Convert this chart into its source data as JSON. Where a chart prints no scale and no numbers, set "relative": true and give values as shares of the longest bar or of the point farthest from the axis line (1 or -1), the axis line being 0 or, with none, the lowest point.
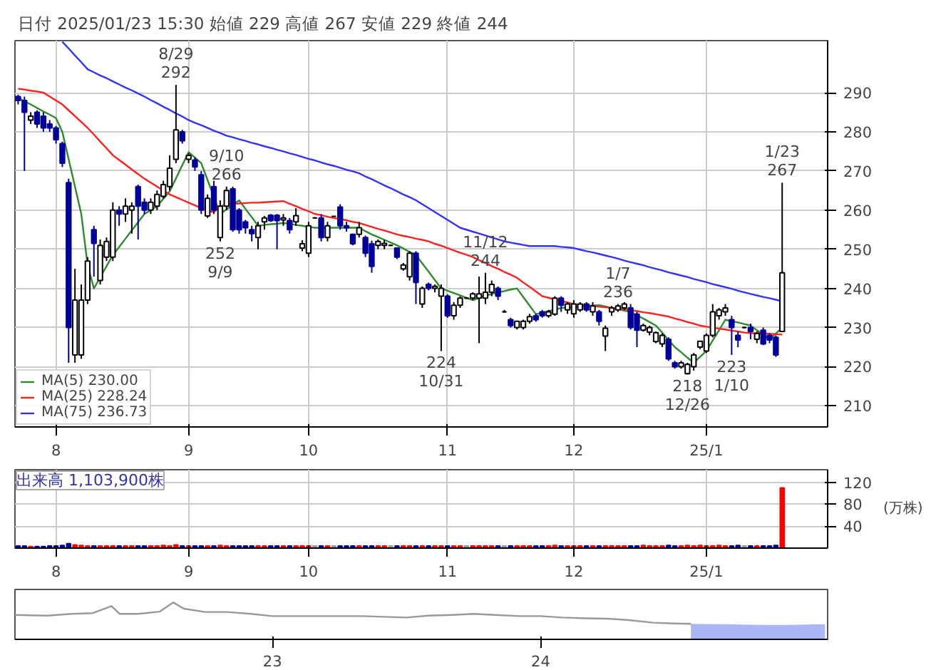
{
  "chart_data": [
    {
      "type": "candlestick",
      "title": "日付 2025/01/23 15:30 始値 229 高値 267 安値 229 終値 244",
      "categories": [
        null,
        null,
        null,
        null,
        null,
        null,
        "8",
        null,
        null,
        null,
        null,
        null,
        null,
        null,
        null,
        null,
        null,
        null,
        null,
        null,
        null,
        null,
        null,
        null,
        null,
        null,
        null,
        "9",
        null,
        null,
        null,
        null,
        null,
        null,
        null,
        null,
        null,
        null,
        null,
        null,
        null,
        null,
        null,
        null,
        null,
        null,
        "10",
        null,
        null,
        null,
        null,
        null,
        null,
        null,
        null,
        null,
        null,
        null,
        null,
        null,
        null,
        null,
        null,
        null,
        null,
        null,
        null,
        null,
        "11",
        null,
        null,
        null,
        null,
        null,
        null,
        null,
        null,
        null,
        null,
        null,
        null,
        null,
        null,
        null,
        null,
        null,
        null,
        null,
        "12",
        null,
        null,
        null,
        null,
        null,
        null,
        null,
        null,
        null,
        null,
        null,
        null,
        null,
        null,
        null,
        null,
        null,
        null,
        null,
        null,
        "25/1",
        null,
        null,
        null,
        null,
        null,
        null,
        null,
        null,
        null,
        null,
        null,
        null
      ],
      "ohlc": [
        [
          289,
          289.5,
          287,
          288
        ],
        [
          288,
          289,
          270,
          285
        ],
        [
          283,
          285,
          282,
          284
        ],
        [
          285,
          285.5,
          281,
          282
        ],
        [
          284,
          285,
          280,
          281
        ],
        [
          282,
          283,
          280,
          281
        ],
        [
          281,
          281.5,
          277,
          278
        ],
        [
          277,
          277.5,
          271,
          272
        ],
        [
          267,
          268,
          221,
          230
        ],
        [
          223,
          245,
          221,
          237
        ],
        [
          223,
          241,
          222,
          237
        ],
        [
          237,
          248,
          236,
          247
        ],
        [
          255,
          256,
          243,
          251.5
        ],
        [
          242,
          252.5,
          241,
          251
        ],
        [
          248,
          253,
          247,
          252
        ],
        [
          248,
          262,
          247,
          260
        ],
        [
          260,
          261,
          256,
          259
        ],
        [
          259,
          263,
          257,
          261
        ],
        [
          260,
          262,
          254,
          261
        ],
        [
          266,
          266.5,
          252.5,
          261
        ],
        [
          262,
          263,
          259,
          260
        ],
        [
          260,
          263,
          259,
          262
        ],
        [
          261,
          265,
          260,
          264
        ],
        [
          263.5,
          267.5,
          263,
          266.5
        ],
        [
          266,
          274,
          265,
          270.7
        ],
        [
          273,
          292,
          272,
          280.5
        ],
        [
          280,
          280.5,
          277,
          277.7
        ],
        [
          273,
          274.5,
          272,
          274
        ],
        [
          272.8,
          273.5,
          270,
          271
        ],
        [
          269,
          270,
          259,
          260
        ],
        [
          258.5,
          264,
          258,
          263
        ],
        [
          266,
          267.5,
          259,
          260
        ],
        [
          253,
          262.5,
          252,
          261
        ],
        [
          261,
          266,
          260,
          265
        ],
        [
          265.4,
          266,
          254.5,
          255
        ],
        [
          260,
          260.5,
          254,
          255
        ],
        [
          257,
          257.5,
          254,
          255.5
        ],
        [
          255,
          256,
          252,
          254
        ],
        [
          253,
          257,
          250,
          256
        ],
        [
          257,
          258.5,
          255,
          258
        ],
        [
          258.7,
          259,
          257,
          257.3
        ],
        [
          258.7,
          259,
          250,
          257.3
        ],
        [
          257.5,
          259,
          256,
          258
        ],
        [
          257.3,
          258,
          254,
          255
        ],
        [
          257,
          260.5,
          256,
          258.6
        ],
        [
          250.3,
          252.3,
          249.5,
          251.4
        ],
        [
          249,
          257,
          248,
          256
        ],
        [
          258,
          258.2,
          257.8,
          258
        ],
        [
          258,
          259,
          252,
          253
        ],
        [
          253,
          257,
          252,
          256
        ],
        [
          258.4,
          258.5,
          258.3,
          258.4
        ],
        [
          260.8,
          261.5,
          255,
          256
        ],
        [
          256,
          257,
          254.5,
          255.5
        ],
        [
          253.8,
          254,
          251,
          251.4
        ],
        [
          253.8,
          257,
          253,
          255.5
        ],
        [
          253,
          253.5,
          248,
          249
        ],
        [
          251.4,
          252.2,
          244,
          245.6
        ],
        [
          251,
          252.5,
          250,
          252
        ],
        [
          251,
          252.4,
          250,
          251.5
        ],
        [
          251,
          251.2,
          250.8,
          251
        ],
        [
          250.3,
          250.5,
          247.5,
          248
        ],
        [
          245,
          246.5,
          244.5,
          246
        ],
        [
          243,
          249.5,
          242,
          249
        ],
        [
          249,
          249.5,
          236,
          241.5
        ],
        [
          236,
          240.5,
          235,
          240
        ],
        [
          241,
          241.5,
          239.5,
          240
        ],
        [
          240,
          241,
          239,
          240.5
        ],
        [
          238,
          241,
          224,
          240
        ],
        [
          238,
          238.5,
          232.5,
          233
        ],
        [
          233,
          236.5,
          232,
          235.7
        ],
        [
          235.7,
          238,
          235,
          237.5
        ],
        [
          237.5,
          237.7,
          237.3,
          237.5
        ],
        [
          237.5,
          239,
          237,
          238.6
        ],
        [
          237.5,
          243,
          226,
          238.6
        ],
        [
          237.5,
          244,
          236,
          239
        ],
        [
          239,
          242,
          238,
          241
        ],
        [
          240,
          240.5,
          237,
          238
        ],
        [
          234,
          234.5,
          233.8,
          234
        ],
        [
          232,
          232.5,
          230,
          230.5
        ],
        [
          230,
          231.6,
          229.5,
          231.6
        ],
        [
          230,
          232,
          229.5,
          231.6
        ],
        [
          231.6,
          233.5,
          231,
          232.8
        ],
        [
          233,
          233.5,
          231.5,
          232
        ],
        [
          234,
          234.5,
          232.5,
          233
        ],
        [
          233,
          234.5,
          232.5,
          234
        ],
        [
          233.4,
          238,
          233,
          237.5
        ],
        [
          237.5,
          238,
          234,
          235.7
        ],
        [
          234.5,
          236.5,
          233.5,
          236
        ],
        [
          233.5,
          237,
          232.5,
          236
        ],
        [
          234.5,
          236.5,
          234,
          236
        ],
        [
          236,
          236.5,
          234,
          234.5
        ],
        [
          234,
          236.5,
          233,
          235.5
        ],
        [
          234,
          234.5,
          230.5,
          231.6
        ],
        [
          227.8,
          230.5,
          224,
          229.8
        ],
        [
          234,
          235.5,
          233,
          235
        ],
        [
          234.5,
          236,
          234,
          235.5
        ],
        [
          235,
          236.5,
          234.5,
          236
        ],
        [
          235,
          236,
          229.5,
          230
        ],
        [
          233.4,
          234,
          225,
          229.3
        ],
        [
          229.3,
          231,
          229,
          230.5
        ],
        [
          228.8,
          230.5,
          228,
          230
        ],
        [
          226.4,
          229,
          226,
          228.7
        ],
        [
          225.8,
          228.5,
          225,
          228
        ],
        [
          227,
          227.5,
          221.5,
          222
        ],
        [
          221,
          221.5,
          219.5,
          220
        ],
        [
          220,
          221.5,
          219.5,
          221
        ],
        [
          218.2,
          221,
          218,
          220.6
        ],
        [
          220,
          223.5,
          219,
          223
        ],
        [
          225,
          226.5,
          224.5,
          226.5
        ],
        [
          224,
          228.5,
          223.5,
          228
        ],
        [
          228,
          236,
          227.5,
          234
        ],
        [
          233,
          235,
          232,
          234.5
        ],
        [
          234,
          236,
          233,
          235
        ],
        [
          232,
          233,
          223,
          230
        ],
        [
          228,
          229,
          225,
          226.8
        ],
        [
          230,
          230.2,
          229.8,
          230
        ],
        [
          230,
          231,
          227,
          229
        ],
        [
          227,
          229,
          226,
          228.5
        ],
        [
          229.3,
          230,
          225.5,
          225.8
        ],
        [
          228,
          228.5,
          226,
          226.8
        ],
        [
          227.5,
          228,
          222.5,
          223
        ],
        [
          229,
          267,
          229,
          244
        ]
      ],
      "series": [
        {
          "type": "line",
          "name": "MA(5) 230.00",
          "color": "#2e8b2e",
          "values": [
            288.7,
            287.8,
            287,
            286.1,
            285.2,
            284.4,
            283.5,
            280,
            273,
            266,
            259,
            246,
            240,
            242.8,
            245.7,
            248.5,
            250.6,
            252.7,
            254.8,
            256.9,
            259,
            260,
            261,
            262.9,
            264.8,
            268.1,
            271.5,
            274.8,
            273.4,
            272,
            267.7,
            263.3,
            259,
            260.2,
            261.3,
            262.5,
            260.3,
            258.2,
            256,
            256.2,
            256.4,
            256.5,
            256.7,
            256.5,
            256.2,
            256,
            255.7,
            255.5,
            255.5,
            255.5,
            255.5,
            255.5,
            255.5,
            255.5,
            255.5,
            254.6,
            253.8,
            253.1,
            252.4,
            251.7,
            251,
            250.2,
            249.3,
            248.5,
            246.4,
            244.3,
            242.1,
            240,
            239.4,
            238.8,
            238.2,
            237.6,
            237,
            237.5,
            238.1,
            238.6,
            239,
            239.3,
            239.7,
            240,
            237.8,
            235.6,
            233.4,
            233.8,
            234.2,
            234.6,
            235,
            235.1,
            235.2,
            235.4,
            235.5,
            235.6,
            235.7,
            235.4,
            235,
            234.7,
            234.3,
            234,
            233.1,
            232.3,
            231.4,
            230.5,
            228.7,
            226.8,
            225,
            223.7,
            222.3,
            221,
            222.5,
            224,
            226.7,
            229.3,
            232,
            231.6,
            231.3,
            230.9,
            230.5,
            229.3,
            228.2,
            227,
            228.5,
            230
          ]
        },
        {
          "type": "line",
          "name": "MA(25) 228.24",
          "color": "#ff2020",
          "values": [
            291,
            290.8,
            290.5,
            290.3,
            290,
            289,
            288,
            287,
            285.5,
            284,
            282.5,
            281,
            279.3,
            277.5,
            275.8,
            274,
            272.8,
            271.6,
            270.4,
            269.2,
            268,
            267,
            266,
            265,
            264,
            263.3,
            262.6,
            261.9,
            261.2,
            260.5,
            259.8,
            259.5,
            260.9,
            261.5,
            261.6,
            261.7,
            261.8,
            261.9,
            261.9,
            262,
            262.1,
            262.2,
            262.3,
            261.6,
            261,
            260.3,
            259.7,
            259,
            258.7,
            258.3,
            258,
            257.7,
            257.4,
            257,
            256.7,
            256.2,
            255.7,
            255.2,
            254.8,
            254.3,
            253.8,
            253.4,
            253.1,
            252.7,
            252.4,
            252,
            251.4,
            250.9,
            250.3,
            249.7,
            249.1,
            248.6,
            248,
            247.2,
            246.5,
            245.7,
            245,
            244.2,
            243.5,
            242.7,
            241.5,
            240.4,
            239.2,
            238,
            237.6,
            237.2,
            236.8,
            236.4,
            236,
            235.8,
            235.7,
            235.5,
            235.3,
            235.2,
            235,
            234.8,
            234.7,
            234.5,
            234.2,
            233.9,
            233.7,
            233.4,
            233.1,
            232.8,
            232.3,
            231.9,
            231.4,
            231,
            230.5,
            230.2,
            230,
            229.7,
            229.5,
            229.2,
            229,
            228.7,
            228.6,
            228.5,
            228.5,
            228.4,
            228.3,
            228.2
          ]
        },
        {
          "type": "line",
          "name": "MA(75) 236.73",
          "color": "#3333ff",
          "values": [
            null,
            null,
            null,
            null,
            null,
            null,
            null,
            303,
            301.3,
            299.5,
            297.8,
            296,
            295.2,
            294.4,
            293.7,
            292.9,
            292.1,
            291.3,
            290.6,
            289.8,
            289,
            288.1,
            287.3,
            286.4,
            285.6,
            284.7,
            283.9,
            283,
            282.3,
            281.7,
            281,
            280.3,
            279.7,
            279,
            278.6,
            278.1,
            277.7,
            277.2,
            276.8,
            276.3,
            275.9,
            275.4,
            275,
            274.5,
            274.1,
            273.6,
            273.1,
            272.7,
            272.2,
            271.7,
            271.3,
            270.8,
            270.3,
            269.9,
            269.4,
            268.6,
            267.9,
            267.1,
            266.3,
            265.6,
            264.8,
            264,
            263.3,
            262.5,
            261.5,
            260.5,
            259.5,
            258.5,
            257.5,
            256.5,
            255.5,
            255,
            254.5,
            254,
            253.5,
            253,
            252.5,
            252,
            251.7,
            251.4,
            251.1,
            250.8,
            250.8,
            250.8,
            250.8,
            250.8,
            250.6,
            250.5,
            250.3,
            249.9,
            249.5,
            249.2,
            248.8,
            248.4,
            248,
            247.6,
            247.1,
            246.7,
            246.3,
            245.9,
            245.4,
            245,
            244.6,
            244.1,
            243.7,
            243.3,
            242.9,
            242.4,
            242,
            241.6,
            241.1,
            240.7,
            240.3,
            239.9,
            239.4,
            239,
            238.6,
            238.2,
            237.8,
            237.5,
            237.1,
            236.7
          ]
        }
      ],
      "annotations": [
        {
          "text": "8/29\n292",
          "y": 292
        },
        {
          "text": "9/10\n266",
          "y": 266
        },
        {
          "text": "252\n9/9",
          "y": 252
        },
        {
          "text": "224\n10/31",
          "y": 224
        },
        {
          "text": "11/12\n244",
          "y": 244
        },
        {
          "text": "218\n12/26",
          "y": 218
        },
        {
          "text": "1/7\n236",
          "y": 236
        },
        {
          "text": "223\n1/10",
          "y": 223
        },
        {
          "text": "1/23\n267",
          "y": 267
        }
      ],
      "ylim": [
        204.6,
        303.3
      ],
      "yticks": [
        210,
        220,
        230,
        240,
        250,
        260,
        270,
        280,
        290
      ],
      "grid": true,
      "legend": "bottom left"
    },
    {
      "type": "bar",
      "title": "出来高 1,103,900株",
      "ylabel": "(万株)",
      "categories": [
        null,
        null,
        null,
        null,
        null,
        null,
        "8",
        null,
        null,
        null,
        null,
        null,
        null,
        null,
        null,
        null,
        null,
        null,
        null,
        null,
        null,
        null,
        null,
        null,
        null,
        null,
        null,
        "9",
        null,
        null,
        null,
        null,
        null,
        null,
        null,
        null,
        null,
        null,
        null,
        null,
        null,
        null,
        null,
        null,
        null,
        null,
        "10",
        null,
        null,
        null,
        null,
        null,
        null,
        null,
        null,
        null,
        null,
        null,
        null,
        null,
        null,
        null,
        null,
        null,
        null,
        null,
        null,
        null,
        "11",
        null,
        null,
        null,
        null,
        null,
        null,
        null,
        null,
        null,
        null,
        null,
        null,
        null,
        null,
        null,
        null,
        null,
        null,
        null,
        "12",
        null,
        null,
        null,
        null,
        null,
        null,
        null,
        null,
        null,
        null,
        null,
        null,
        null,
        null,
        null,
        null,
        null,
        null,
        null,
        null,
        "25/1",
        null,
        null,
        null,
        null,
        null,
        null,
        null,
        null,
        null,
        null,
        null,
        null
      ],
      "values": [
        4,
        4,
        3,
        3,
        3,
        4,
        4,
        5,
        8,
        6,
        5,
        4,
        4,
        4,
        4,
        4,
        4,
        4,
        4,
        4,
        4,
        4,
        4,
        5,
        4,
        6,
        4,
        4,
        4,
        4,
        4,
        4,
        5,
        4,
        4,
        4,
        4,
        4,
        4,
        4,
        4,
        4,
        4,
        4,
        4,
        4,
        4,
        4,
        4,
        4,
        4,
        4,
        4,
        4,
        4,
        4,
        4,
        4,
        4,
        4,
        4,
        4,
        4,
        4,
        4,
        4,
        4,
        4,
        4,
        4,
        4,
        4,
        4,
        4,
        4,
        4,
        4,
        4,
        4,
        4,
        4,
        4,
        4,
        4,
        4,
        5,
        4,
        4,
        4,
        4,
        4,
        4,
        4,
        4,
        4,
        4,
        4,
        4,
        4,
        5,
        4,
        4,
        4,
        5,
        4,
        4,
        5,
        4,
        5,
        4,
        4,
        5,
        4,
        4,
        5,
        4,
        4,
        4,
        4,
        4,
        5,
        110
      ],
      "colors": [
        "#000099",
        "#000099",
        "#ff0000",
        "#000099",
        "#000099",
        "#000099",
        "#000099",
        "#000099",
        "#000099",
        "#ff0000",
        "#ff0000",
        "#ff0000",
        "#000099",
        "#ff0000",
        "#ff0000",
        "#ff0000",
        "#000099",
        "#ff0000",
        "#ff0000",
        "#000099",
        "#000099",
        "#ff0000",
        "#ff0000",
        "#ff0000",
        "#ff0000",
        "#ff0000",
        "#000099",
        "#ff0000",
        "#000099",
        "#000099",
        "#ff0000",
        "#000099",
        "#ff0000",
        "#ff0000",
        "#000099",
        "#000099",
        "#000099",
        "#000099",
        "#ff0000",
        "#ff0000",
        "#000099",
        "#000099",
        "#ff0000",
        "#000099",
        "#ff0000",
        "#ff0000",
        "#ff0000",
        "#999999",
        "#000099",
        "#ff0000",
        "#999999",
        "#000099",
        "#000099",
        "#000099",
        "#ff0000",
        "#000099",
        "#000099",
        "#ff0000",
        "#ff0000",
        "#999999",
        "#000099",
        "#ff0000",
        "#ff0000",
        "#000099",
        "#ff0000",
        "#000099",
        "#ff0000",
        "#ff0000",
        "#000099",
        "#ff0000",
        "#ff0000",
        "#999999",
        "#ff0000",
        "#ff0000",
        "#ff0000",
        "#ff0000",
        "#000099",
        "#999999",
        "#000099",
        "#ff0000",
        "#ff0000",
        "#ff0000",
        "#000099",
        "#000099",
        "#ff0000",
        "#ff0000",
        "#000099",
        "#ff0000",
        "#ff0000",
        "#ff0000",
        "#000099",
        "#ff0000",
        "#000099",
        "#ff0000",
        "#ff0000",
        "#ff0000",
        "#ff0000",
        "#000099",
        "#000099",
        "#ff0000",
        "#ff0000",
        "#ff0000",
        "#ff0000",
        "#000099",
        "#000099",
        "#ff0000",
        "#ff0000",
        "#ff0000",
        "#ff0000",
        "#ff0000",
        "#ff0000",
        "#ff0000",
        "#ff0000",
        "#000099",
        "#000099",
        "#999999",
        "#000099",
        "#ff0000",
        "#000099",
        "#000099",
        "#000099",
        "#ff0000"
      ],
      "ylim": [
        0,
        143
      ],
      "yticks": [
        40,
        80,
        120
      ],
      "grid": true
    },
    {
      "type": "line",
      "relative": true,
      "series": [
        {
          "type": "line",
          "color": "#999999",
          "x": [
            22.04,
            22.16,
            22.25,
            22.33,
            22.4,
            22.43,
            22.5,
            22.58,
            22.63,
            22.67,
            22.75,
            22.83,
            22.92,
            23.0,
            23.16,
            23.33,
            23.5,
            23.58,
            23.67,
            23.75,
            23.83,
            23.92,
            24.0,
            24.08,
            24.17,
            24.25,
            24.33,
            24.42,
            24.5,
            24.56
          ],
          "values": [
            0.66,
            0.64,
            0.69,
            0.71,
            0.9,
            0.69,
            0.69,
            0.75,
            1,
            0.83,
            0.74,
            0.74,
            0.69,
            0.63,
            0.63,
            0.63,
            0.59,
            0.64,
            0.66,
            0.69,
            0.66,
            0.63,
            0.63,
            0.59,
            0.57,
            0.56,
            0.52,
            0.45,
            0.43,
            0.42
          ]
        },
        {
          "type": "area",
          "color": "#a9b8f5",
          "x": [
            24.56,
            24.67,
            24.75,
            24.83,
            24.92,
            25.06
          ],
          "values": [
            0.42,
            0.41,
            0.4,
            0.39,
            0.39,
            0.41
          ]
        }
      ],
      "xlim": [
        22.04,
        25.07
      ],
      "xticks": [
        23,
        24
      ],
      "tick_labels": "x"
    }
  ]
}
